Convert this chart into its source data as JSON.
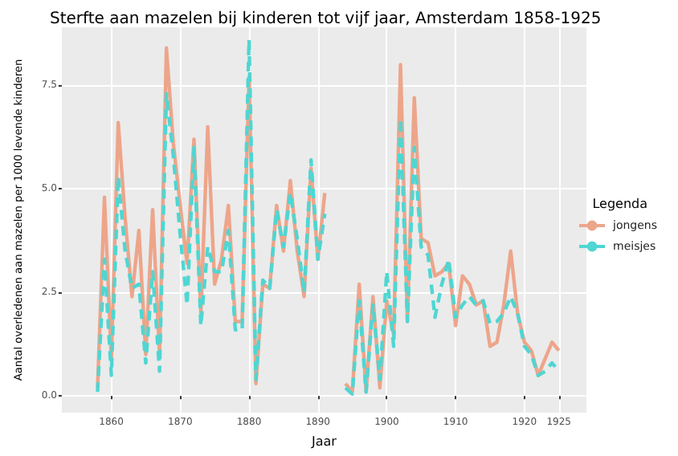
{
  "chart_data": {
    "type": "line",
    "title": "Sterfte aan mazelen bij kinderen tot vijf jaar, Amsterdam 1858-1925",
    "xlabel": "Jaar",
    "ylabel": "Aantal overledenen aan mazelen per 1000 levende kinderen",
    "legend_title": "Legenda",
    "legend": "right",
    "grid": true,
    "marker": "none",
    "x": [
      1858,
      1859,
      1860,
      1861,
      1862,
      1863,
      1864,
      1865,
      1866,
      1867,
      1868,
      1869,
      1870,
      1871,
      1872,
      1873,
      1874,
      1875,
      1876,
      1877,
      1878,
      1879,
      1880,
      1881,
      1882,
      1883,
      1884,
      1885,
      1886,
      1887,
      1888,
      1889,
      1890,
      1891,
      1892,
      1893,
      1894,
      1895,
      1896,
      1897,
      1898,
      1899,
      1900,
      1901,
      1902,
      1903,
      1904,
      1905,
      1906,
      1907,
      1908,
      1909,
      1910,
      1911,
      1912,
      1913,
      1914,
      1915,
      1916,
      1917,
      1918,
      1919,
      1920,
      1921,
      1922,
      1923,
      1924,
      1925
    ],
    "xlim": [
      1852.8,
      1929
    ],
    "xticks": [
      1860,
      1870,
      1880,
      1890,
      1900,
      1910,
      1920,
      1925
    ],
    "ylim": [
      -0.4,
      8.9
    ],
    "yticks": [
      {
        "value": 0,
        "label": "0.0"
      },
      {
        "value": 2.5,
        "label": "2.5"
      },
      {
        "value": 5,
        "label": "5.0"
      },
      {
        "value": 7.5,
        "label": "7.5"
      }
    ],
    "series": [
      {
        "name": "jongens",
        "color": "#eda58a",
        "line_style": "solid",
        "values": [
          0.2,
          4.8,
          0.9,
          6.6,
          4.3,
          2.4,
          4.0,
          1.0,
          4.5,
          1.0,
          8.4,
          6.1,
          4.6,
          3.2,
          6.2,
          2.0,
          6.5,
          2.7,
          3.3,
          4.6,
          1.8,
          1.8,
          7.7,
          0.3,
          2.7,
          2.6,
          4.6,
          3.5,
          5.2,
          3.5,
          2.4,
          5.5,
          3.3,
          4.9,
          null,
          null,
          0.3,
          0.1,
          2.7,
          0.1,
          2.4,
          0.2,
          2.3,
          1.5,
          8.0,
          1.8,
          7.2,
          3.8,
          3.7,
          2.9,
          3.0,
          3.2,
          1.7,
          2.9,
          2.7,
          2.2,
          2.3,
          1.2,
          1.3,
          2.2,
          3.5,
          2.0,
          1.3,
          1.1,
          0.5,
          0.9,
          1.3,
          1.1
        ]
      },
      {
        "name": "meisjes",
        "color": "#4fd6d2",
        "line_style": "dashed",
        "values": [
          0.1,
          3.3,
          0.5,
          5.3,
          3.5,
          2.6,
          2.7,
          0.8,
          3.0,
          0.6,
          7.3,
          5.8,
          3.9,
          2.2,
          6.0,
          1.7,
          3.6,
          3.0,
          3.0,
          4.0,
          1.6,
          1.6,
          8.6,
          0.4,
          2.8,
          2.6,
          4.5,
          3.6,
          4.9,
          3.8,
          2.5,
          5.7,
          3.3,
          4.4,
          null,
          null,
          0.2,
          0.05,
          2.3,
          0.1,
          2.2,
          0.4,
          3.0,
          1.2,
          6.7,
          1.8,
          6.0,
          3.6,
          3.4,
          1.9,
          2.7,
          3.3,
          1.9,
          2.2,
          2.4,
          2.2,
          2.3,
          1.75,
          1.8,
          2.0,
          2.4,
          2.0,
          1.2,
          1.0,
          0.5,
          0.6,
          0.8,
          0.6
        ]
      }
    ]
  }
}
